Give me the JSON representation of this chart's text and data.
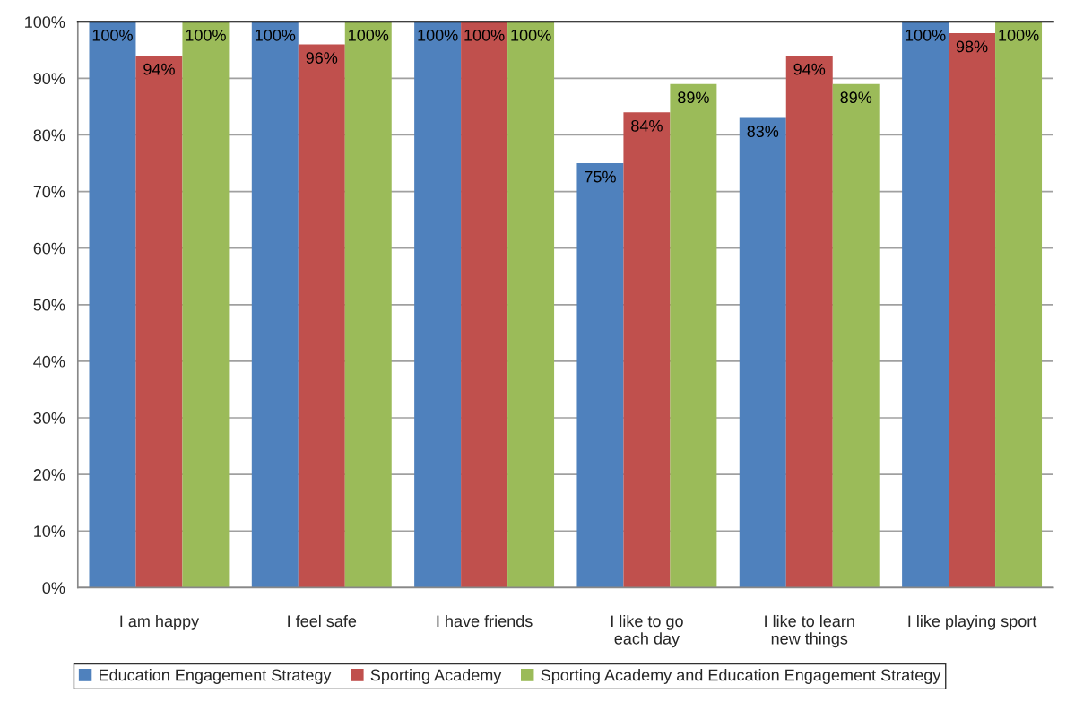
{
  "chart_data": {
    "type": "bar",
    "categories": [
      "I am happy",
      "I feel safe",
      "I have friends",
      "I like to go\neach day",
      "I like to learn\nnew things",
      "I like playing sport"
    ],
    "series": [
      {
        "name": "Education Engagement Strategy",
        "color": "#4f81bd",
        "values": [
          100,
          100,
          100,
          75,
          83,
          100
        ],
        "value_labels": [
          "100%",
          "100%",
          "100%",
          "75%",
          "83%",
          "100%"
        ]
      },
      {
        "name": "Sporting Academy",
        "color": "#c0504d",
        "values": [
          94,
          96,
          100,
          84,
          94,
          98
        ],
        "value_labels": [
          "94%",
          "96%",
          "100%",
          "84%",
          "94%",
          "98%"
        ]
      },
      {
        "name": "Sporting Academy and Education Engagement Strategy",
        "color": "#9bbb59",
        "values": [
          100,
          100,
          100,
          89,
          89,
          100
        ],
        "value_labels": [
          "100%",
          "100%",
          "100%",
          "89%",
          "89%",
          "100%"
        ]
      }
    ],
    "ylim": [
      0,
      100
    ],
    "yticks": [
      {
        "value": 0,
        "label": "0%"
      },
      {
        "value": 10,
        "label": "10%"
      },
      {
        "value": 20,
        "label": "20%"
      },
      {
        "value": 30,
        "label": "30%"
      },
      {
        "value": 40,
        "label": "40%"
      },
      {
        "value": 50,
        "label": "50%"
      },
      {
        "value": 60,
        "label": "60%"
      },
      {
        "value": 70,
        "label": "70%"
      },
      {
        "value": 80,
        "label": "80%"
      },
      {
        "value": 90,
        "label": "90%"
      },
      {
        "value": 100,
        "label": "100%"
      }
    ],
    "grid": "y",
    "legend": "bottom"
  }
}
